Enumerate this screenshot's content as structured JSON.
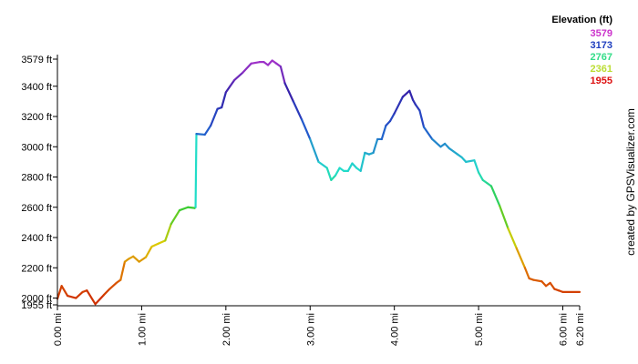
{
  "chart_data": {
    "type": "line",
    "xlabel": "",
    "ylabel": "",
    "x_unit": "mi",
    "y_unit": "ft",
    "xlim": [
      0.0,
      6.2
    ],
    "ylim": [
      1955,
      3579
    ],
    "grid": false,
    "x_ticks": [
      "0.00 mi",
      "1.00 mi",
      "2.00 mi",
      "3.00 mi",
      "4.00 mi",
      "5.00 mi",
      "6.00 mi",
      "6.20 mi"
    ],
    "x_tick_values": [
      0,
      1,
      2,
      3,
      4,
      5,
      6,
      6.2
    ],
    "y_ticks": [
      "1955 ft",
      "2000 ft",
      "2200 ft",
      "2400 ft",
      "2600 ft",
      "2800 ft",
      "3000 ft",
      "3200 ft",
      "3400 ft",
      "3579 ft"
    ],
    "y_tick_values": [
      1955,
      2000,
      2200,
      2400,
      2600,
      2800,
      3000,
      3200,
      3400,
      3579
    ],
    "legend": {
      "title": "Elevation (ft)",
      "placement": "top-right",
      "entries": [
        {
          "label": "3579",
          "color": "#cc33cc"
        },
        {
          "label": "3173",
          "color": "#1f3fbf"
        },
        {
          "label": "2767",
          "color": "#33dd88"
        },
        {
          "label": "2361",
          "color": "#bbdd33"
        },
        {
          "label": "1955",
          "color": "#dd1111"
        }
      ]
    },
    "series": [
      {
        "x": [
          0.0,
          0.05,
          0.12,
          0.22,
          0.3,
          0.35,
          0.45,
          0.55,
          0.62,
          0.7,
          0.75,
          0.8,
          0.85,
          0.9,
          0.97,
          1.05,
          1.12,
          1.2,
          1.28,
          1.35,
          1.45,
          1.55,
          1.63,
          1.64,
          1.65,
          1.75,
          1.82,
          1.9,
          1.95,
          2.0,
          2.05,
          2.1,
          2.2,
          2.3,
          2.4,
          2.45,
          2.5,
          2.55,
          2.6,
          2.65,
          2.7,
          2.8,
          2.9,
          3.0,
          3.1,
          3.2,
          3.25,
          3.3,
          3.35,
          3.4,
          3.45,
          3.5,
          3.55,
          3.6,
          3.65,
          3.7,
          3.75,
          3.8,
          3.85,
          3.9,
          3.95,
          4.0,
          4.1,
          4.18,
          4.22,
          4.25,
          4.3,
          4.35,
          4.45,
          4.55,
          4.6,
          4.65,
          4.7,
          4.75,
          4.8,
          4.85,
          4.95,
          5.0,
          5.05,
          5.1,
          5.15,
          5.25,
          5.35,
          5.45,
          5.55,
          5.6,
          5.65,
          5.75,
          5.8,
          5.85,
          5.9,
          5.95,
          6.0,
          6.2
        ],
        "values": [
          1995,
          2080,
          2015,
          2000,
          2040,
          2050,
          1960,
          2020,
          2060,
          2100,
          2120,
          2240,
          2260,
          2275,
          2240,
          2270,
          2340,
          2360,
          2380,
          2490,
          2580,
          2600,
          2595,
          2600,
          3085,
          3080,
          3140,
          3250,
          3260,
          3360,
          3400,
          3440,
          3490,
          3550,
          3560,
          3560,
          3540,
          3570,
          3550,
          3530,
          3420,
          3300,
          3180,
          3050,
          2900,
          2860,
          2780,
          2810,
          2860,
          2840,
          2840,
          2890,
          2860,
          2840,
          2960,
          2950,
          2960,
          3050,
          3050,
          3140,
          3170,
          3220,
          3330,
          3370,
          3310,
          3280,
          3240,
          3130,
          3050,
          3000,
          3020,
          2990,
          2970,
          2950,
          2930,
          2900,
          2910,
          2830,
          2780,
          2760,
          2740,
          2610,
          2460,
          2330,
          2200,
          2130,
          2120,
          2110,
          2080,
          2100,
          2060,
          2050,
          2040,
          2040
        ]
      }
    ],
    "credit": "created by GPSVisualizer.com"
  }
}
